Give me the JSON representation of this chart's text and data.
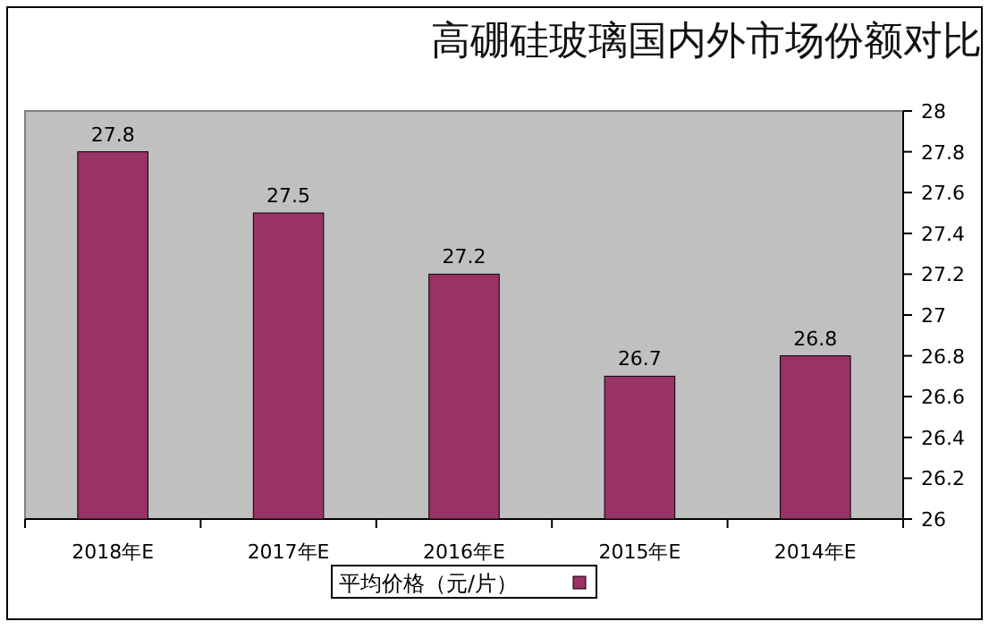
{
  "chart_data": {
    "type": "bar",
    "title": "高硼硅玻璃国内外市场份额对比",
    "categories": [
      "2018年E",
      "2017年E",
      "2016年E",
      "2015年E",
      "2014年E"
    ],
    "series": [
      {
        "name": "平均价格（元/片）",
        "color": "#993366",
        "values": [
          27.8,
          27.5,
          27.2,
          26.7,
          26.8
        ]
      }
    ],
    "ylim": [
      26,
      28
    ],
    "yticks": [
      26,
      26.2,
      26.4,
      26.6,
      26.8,
      27,
      27.2,
      27.4,
      27.6,
      27.8,
      28
    ],
    "data_labels": true,
    "legend": "bottom"
  }
}
